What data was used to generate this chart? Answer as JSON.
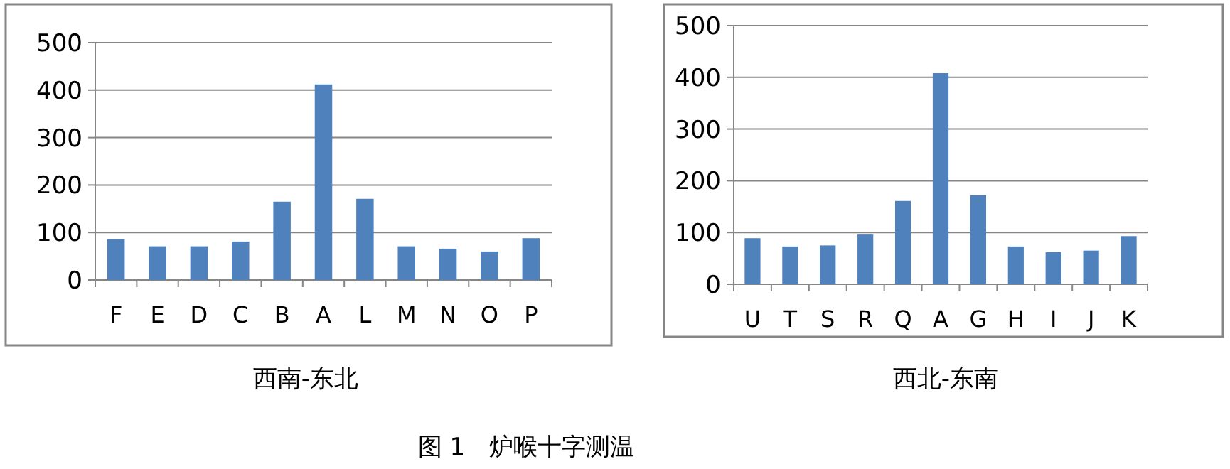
{
  "chart_data": [
    {
      "type": "bar",
      "title": "西南-东北",
      "annotations": [
        "图 1　炉喉十字测温"
      ],
      "categories": [
        "F",
        "E",
        "D",
        "C",
        "B",
        "A",
        "L",
        "M",
        "N",
        "O",
        "P"
      ],
      "values": [
        86,
        71,
        71,
        81,
        165,
        412,
        171,
        71,
        66,
        60,
        88
      ],
      "color": "#4f81bd",
      "ylim": [
        0,
        500
      ],
      "yticks": [
        0,
        100,
        200,
        300,
        400,
        500
      ],
      "grid": "y"
    },
    {
      "type": "bar",
      "title": "西北-东南",
      "categories": [
        "U",
        "T",
        "S",
        "R",
        "Q",
        "A",
        "G",
        "H",
        "I",
        "J",
        "K"
      ],
      "values": [
        89,
        73,
        75,
        96,
        161,
        408,
        172,
        73,
        62,
        65,
        93
      ],
      "color": "#4f81bd",
      "ylim": [
        0,
        500
      ],
      "yticks": [
        0,
        100,
        200,
        300,
        400,
        500
      ],
      "grid": "y"
    }
  ]
}
